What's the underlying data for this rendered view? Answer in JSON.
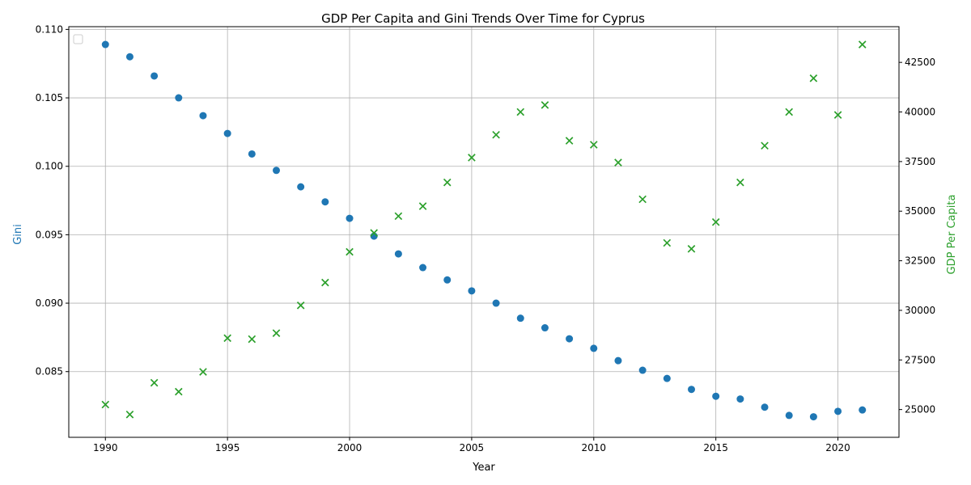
{
  "chart_data": {
    "type": "scatter",
    "title": "GDP Per Capita and Gini Trends Over Time for Cyprus",
    "xlabel": "Year",
    "ylabel_left": "Gini",
    "ylabel_right": "GDP Per Capita",
    "xlim": [
      1988.5,
      2022.5
    ],
    "ylim_left": [
      0.0802,
      0.1102
    ],
    "ylim_right": [
      23600,
      44300
    ],
    "x_ticks": [
      1990,
      1995,
      2000,
      2005,
      2010,
      2015,
      2020
    ],
    "x_tick_labels": [
      "1990",
      "1995",
      "2000",
      "2005",
      "2010",
      "2015",
      "2020"
    ],
    "y_left_ticks": [
      0.085,
      0.09,
      0.095,
      0.1,
      0.105,
      0.11
    ],
    "y_left_tick_labels": [
      "0.085",
      "0.090",
      "0.095",
      "0.100",
      "0.105",
      "0.110"
    ],
    "y_right_ticks": [
      25000,
      27500,
      30000,
      32500,
      35000,
      37500,
      40000,
      42500
    ],
    "y_right_tick_labels": [
      "25000",
      "27500",
      "30000",
      "32500",
      "35000",
      "37500",
      "40000",
      "42500"
    ],
    "grid": true,
    "legend": "top-left",
    "x": [
      1990,
      1991,
      1992,
      1993,
      1994,
      1995,
      1996,
      1997,
      1998,
      1999,
      2000,
      2001,
      2002,
      2003,
      2004,
      2005,
      2006,
      2007,
      2008,
      2009,
      2010,
      2011,
      2012,
      2013,
      2014,
      2015,
      2016,
      2017,
      2018,
      2019,
      2020,
      2021
    ],
    "series": [
      {
        "axis": "left",
        "marker": "circle",
        "color": "#1f77b4",
        "values": [
          0.1089,
          0.108,
          0.1066,
          0.105,
          0.1037,
          0.1024,
          0.1009,
          0.0997,
          0.0985,
          0.0974,
          0.0962,
          0.0949,
          0.0936,
          0.0926,
          0.0917,
          0.0909,
          0.09,
          0.0889,
          0.0882,
          0.0874,
          0.0867,
          0.0858,
          0.0851,
          0.0845,
          0.0837,
          0.0832,
          0.083,
          0.0824,
          0.0818,
          0.0817,
          0.0821,
          0.0822
        ]
      },
      {
        "axis": "right",
        "marker": "x",
        "color": "#2ca02c",
        "values": [
          25250,
          24750,
          26350,
          25900,
          26900,
          28600,
          28550,
          28850,
          30250,
          31400,
          32950,
          33900,
          34750,
          35250,
          36450,
          37700,
          38850,
          40000,
          40350,
          38550,
          38350,
          37450,
          35600,
          33400,
          33100,
          34450,
          36450,
          38300,
          40000,
          41700,
          39850,
          43400
        ]
      }
    ]
  }
}
